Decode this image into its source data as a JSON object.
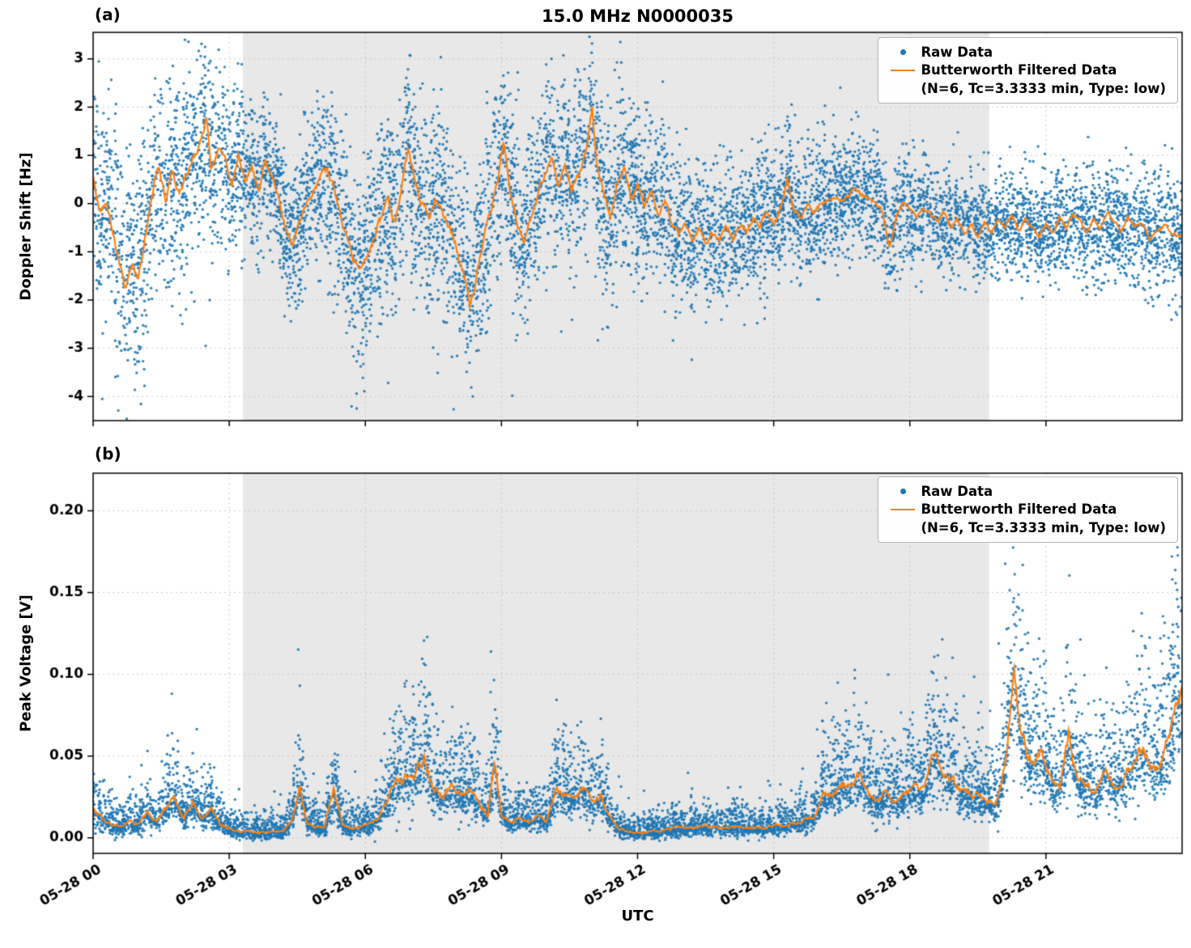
{
  "figure": {
    "title": "15.0 MHz N0000035",
    "xlabel": "UTC",
    "panels": [
      {
        "label": "(a)"
      },
      {
        "label": "(b)"
      }
    ],
    "legend": {
      "raw_label": "Raw Data",
      "filtered_label": "Butterworth Filtered Data",
      "filtered_sublabel": "(N=6, Tc=3.3333 min, Type: low)"
    },
    "colors": {
      "raw": "#1f77b4",
      "filtered": "#ff7f0e",
      "shade": "#e8e8e8",
      "grid": "#bfbfbf"
    }
  },
  "chart_data": [
    {
      "type": "scatter",
      "panel": "(a)",
      "title": "15.0 MHz N0000035",
      "ylabel": "Doppler Shift [Hz]",
      "xlabel": "UTC",
      "xlim_hours": [
        0,
        24
      ],
      "ylim": [
        -4.5,
        3.55
      ],
      "yticks": [
        -4,
        -3,
        -2,
        -1,
        0,
        1,
        2,
        3
      ],
      "xticks": [
        {
          "hour": 0,
          "label": "05-28 00"
        },
        {
          "hour": 3,
          "label": "05-28 03"
        },
        {
          "hour": 6,
          "label": "05-28 06"
        },
        {
          "hour": 9,
          "label": "05-28 09"
        },
        {
          "hour": 12,
          "label": "05-28 12"
        },
        {
          "hour": 15,
          "label": "05-28 15"
        },
        {
          "hour": 18,
          "label": "05-28 18"
        },
        {
          "hour": 21,
          "label": "05-28 21"
        }
      ],
      "shaded_region_hours": [
        3.3,
        19.75
      ],
      "series": [
        {
          "name": "Raw Data",
          "style": "scatter",
          "color": "#1f77b4"
        },
        {
          "name": "Butterworth Filtered Data (N=6, Tc=3.3333 min, Type: low)",
          "style": "line",
          "color": "#ff7f0e"
        }
      ],
      "filtered_line_hour_value": [
        [
          0,
          0.5
        ],
        [
          0.15,
          -0.2
        ],
        [
          0.3,
          0.1
        ],
        [
          0.5,
          -0.9
        ],
        [
          0.7,
          -1.8
        ],
        [
          0.85,
          -1.3
        ],
        [
          1.0,
          -1.6
        ],
        [
          1.15,
          -0.6
        ],
        [
          1.3,
          0.2
        ],
        [
          1.45,
          0.8
        ],
        [
          1.6,
          0.1
        ],
        [
          1.75,
          0.7
        ],
        [
          1.9,
          0.3
        ],
        [
          2.05,
          0.6
        ],
        [
          2.2,
          0.9
        ],
        [
          2.35,
          1.2
        ],
        [
          2.5,
          1.8
        ],
        [
          2.6,
          0.8
        ],
        [
          2.75,
          1.1
        ],
        [
          2.9,
          0.9
        ],
        [
          3.05,
          0.3
        ],
        [
          3.2,
          1.0
        ],
        [
          3.35,
          0.5
        ],
        [
          3.5,
          0.8
        ],
        [
          3.65,
          0.3
        ],
        [
          3.8,
          0.9
        ],
        [
          3.95,
          0.5
        ],
        [
          4.1,
          0.1
        ],
        [
          4.25,
          -0.5
        ],
        [
          4.4,
          -0.9
        ],
        [
          4.55,
          -0.4
        ],
        [
          4.7,
          0.0
        ],
        [
          4.85,
          0.2
        ],
        [
          5.0,
          0.5
        ],
        [
          5.15,
          0.7
        ],
        [
          5.3,
          0.3
        ],
        [
          5.45,
          -0.2
        ],
        [
          5.6,
          -0.8
        ],
        [
          5.75,
          -1.2
        ],
        [
          5.9,
          -1.4
        ],
        [
          6.05,
          -1.1
        ],
        [
          6.2,
          -0.7
        ],
        [
          6.35,
          -0.3
        ],
        [
          6.5,
          0.1
        ],
        [
          6.65,
          -0.4
        ],
        [
          6.8,
          0.3
        ],
        [
          6.95,
          1.1
        ],
        [
          7.1,
          0.4
        ],
        [
          7.25,
          0.0
        ],
        [
          7.4,
          -0.3
        ],
        [
          7.55,
          0.2
        ],
        [
          7.7,
          -0.2
        ],
        [
          7.85,
          -0.5
        ],
        [
          8.0,
          -0.9
        ],
        [
          8.15,
          -1.4
        ],
        [
          8.3,
          -2.1
        ],
        [
          8.45,
          -1.5
        ],
        [
          8.6,
          -0.8
        ],
        [
          8.75,
          -0.2
        ],
        [
          8.9,
          0.4
        ],
        [
          9.05,
          1.3
        ],
        [
          9.2,
          0.3
        ],
        [
          9.35,
          -0.5
        ],
        [
          9.5,
          -0.8
        ],
        [
          9.65,
          -0.2
        ],
        [
          9.8,
          0.2
        ],
        [
          9.95,
          0.6
        ],
        [
          10.1,
          1.0
        ],
        [
          10.25,
          0.4
        ],
        [
          10.4,
          0.8
        ],
        [
          10.55,
          0.2
        ],
        [
          10.7,
          0.6
        ],
        [
          10.85,
          1.0
        ],
        [
          11.0,
          2.0
        ],
        [
          11.1,
          0.8
        ],
        [
          11.25,
          0.2
        ],
        [
          11.4,
          -0.3
        ],
        [
          11.55,
          0.4
        ],
        [
          11.7,
          0.7
        ],
        [
          11.85,
          0.1
        ],
        [
          12.0,
          0.4
        ],
        [
          12.15,
          0.0
        ],
        [
          12.3,
          0.3
        ],
        [
          12.45,
          -0.2
        ],
        [
          12.6,
          0.1
        ],
        [
          12.75,
          -0.4
        ],
        [
          12.9,
          -0.7
        ],
        [
          13.05,
          -0.4
        ],
        [
          13.2,
          -0.8
        ],
        [
          13.35,
          -0.5
        ],
        [
          13.5,
          -0.9
        ],
        [
          13.65,
          -0.6
        ],
        [
          13.8,
          -0.8
        ],
        [
          13.95,
          -0.5
        ],
        [
          14.1,
          -0.7
        ],
        [
          14.25,
          -0.4
        ],
        [
          14.4,
          -0.6
        ],
        [
          14.55,
          -0.3
        ],
        [
          14.7,
          -0.5
        ],
        [
          14.85,
          -0.2
        ],
        [
          15.0,
          -0.4
        ],
        [
          15.15,
          -0.1
        ],
        [
          15.3,
          0.5
        ],
        [
          15.45,
          -0.1
        ],
        [
          15.6,
          -0.3
        ],
        [
          15.75,
          -0.1
        ],
        [
          15.9,
          -0.2
        ],
        [
          16.05,
          0.0
        ],
        [
          16.2,
          0.1
        ],
        [
          16.35,
          0.2
        ],
        [
          16.5,
          0.1
        ],
        [
          16.65,
          0.2
        ],
        [
          16.8,
          0.3
        ],
        [
          16.95,
          0.2
        ],
        [
          17.1,
          0.1
        ],
        [
          17.25,
          0.0
        ],
        [
          17.4,
          -0.2
        ],
        [
          17.55,
          -0.9
        ],
        [
          17.7,
          -0.3
        ],
        [
          17.85,
          0.0
        ],
        [
          18.0,
          -0.1
        ],
        [
          18.15,
          -0.3
        ],
        [
          18.3,
          -0.1
        ],
        [
          18.45,
          -0.2
        ],
        [
          18.6,
          -0.4
        ],
        [
          18.75,
          -0.2
        ],
        [
          18.9,
          -0.5
        ],
        [
          19.05,
          -0.3
        ],
        [
          19.2,
          -0.6
        ],
        [
          19.35,
          -0.4
        ],
        [
          19.5,
          -0.7
        ],
        [
          19.65,
          -0.4
        ],
        [
          19.8,
          -0.6
        ],
        [
          19.95,
          -0.3
        ],
        [
          20.1,
          -0.5
        ],
        [
          20.25,
          -0.2
        ],
        [
          20.4,
          -0.6
        ],
        [
          20.55,
          -0.3
        ],
        [
          20.7,
          -0.5
        ],
        [
          20.85,
          -0.7
        ],
        [
          21.0,
          -0.4
        ],
        [
          21.15,
          -0.6
        ],
        [
          21.3,
          -0.3
        ],
        [
          21.45,
          -0.5
        ],
        [
          21.6,
          -0.2
        ],
        [
          21.75,
          -0.4
        ],
        [
          21.9,
          -0.6
        ],
        [
          22.05,
          -0.3
        ],
        [
          22.2,
          -0.5
        ],
        [
          22.35,
          -0.2
        ],
        [
          22.5,
          -0.4
        ],
        [
          22.65,
          -0.6
        ],
        [
          22.8,
          -0.3
        ],
        [
          22.95,
          -0.5
        ],
        [
          23.1,
          -0.4
        ],
        [
          23.3,
          -0.8
        ],
        [
          23.6,
          -0.5
        ],
        [
          23.9,
          -0.7
        ]
      ],
      "raw_noise_envelope_hour_sigma": [
        [
          0,
          1.0
        ],
        [
          1,
          1.15
        ],
        [
          2,
          1.05
        ],
        [
          2.6,
          1.0
        ],
        [
          3,
          0.85
        ],
        [
          4,
          0.7
        ],
        [
          5,
          0.85
        ],
        [
          6,
          1.0
        ],
        [
          7,
          1.05
        ],
        [
          8,
          1.05
        ],
        [
          9,
          1.05
        ],
        [
          10,
          0.95
        ],
        [
          11,
          1.0
        ],
        [
          12,
          0.9
        ],
        [
          13,
          0.8
        ],
        [
          14,
          0.75
        ],
        [
          15,
          0.7
        ],
        [
          16,
          0.65
        ],
        [
          17,
          0.6
        ],
        [
          18,
          0.58
        ],
        [
          19,
          0.55
        ],
        [
          20,
          0.5
        ],
        [
          21,
          0.5
        ],
        [
          22,
          0.55
        ],
        [
          23,
          0.6
        ],
        [
          24,
          0.65
        ]
      ],
      "noise_model": {
        "type": "symmetric-gaussian"
      }
    },
    {
      "type": "scatter",
      "panel": "(b)",
      "ylabel": "Peak Voltage [V]",
      "xlabel": "UTC",
      "xlim_hours": [
        0,
        24
      ],
      "ylim": [
        -0.0095,
        0.223
      ],
      "yticks": [
        0.0,
        0.05,
        0.1,
        0.15,
        0.2
      ],
      "xticks": [
        {
          "hour": 0,
          "label": "05-28 00"
        },
        {
          "hour": 3,
          "label": "05-28 03"
        },
        {
          "hour": 6,
          "label": "05-28 06"
        },
        {
          "hour": 9,
          "label": "05-28 09"
        },
        {
          "hour": 12,
          "label": "05-28 12"
        },
        {
          "hour": 15,
          "label": "05-28 15"
        },
        {
          "hour": 18,
          "label": "05-28 18"
        },
        {
          "hour": 21,
          "label": "05-28 21"
        }
      ],
      "shaded_region_hours": [
        3.3,
        19.75
      ],
      "series": [
        {
          "name": "Raw Data",
          "style": "scatter",
          "color": "#1f77b4"
        },
        {
          "name": "Butterworth Filtered Data (N=6, Tc=3.3333 min, Type: low)",
          "style": "line",
          "color": "#ff7f0e"
        }
      ],
      "filtered_line_hour_value": [
        [
          0,
          0.018
        ],
        [
          0.2,
          0.012
        ],
        [
          0.4,
          0.008
        ],
        [
          0.6,
          0.007
        ],
        [
          0.8,
          0.01
        ],
        [
          1.0,
          0.008
        ],
        [
          1.2,
          0.015
        ],
        [
          1.4,
          0.01
        ],
        [
          1.6,
          0.018
        ],
        [
          1.8,
          0.025
        ],
        [
          2.0,
          0.012
        ],
        [
          2.2,
          0.022
        ],
        [
          2.4,
          0.012
        ],
        [
          2.6,
          0.018
        ],
        [
          2.8,
          0.008
        ],
        [
          3.0,
          0.006
        ],
        [
          3.3,
          0.004
        ],
        [
          3.6,
          0.003
        ],
        [
          3.9,
          0.003
        ],
        [
          4.2,
          0.004
        ],
        [
          4.4,
          0.012
        ],
        [
          4.55,
          0.032
        ],
        [
          4.7,
          0.01
        ],
        [
          4.9,
          0.007
        ],
        [
          5.1,
          0.006
        ],
        [
          5.3,
          0.028
        ],
        [
          5.5,
          0.008
        ],
        [
          5.7,
          0.006
        ],
        [
          5.9,
          0.007
        ],
        [
          6.1,
          0.008
        ],
        [
          6.3,
          0.012
        ],
        [
          6.5,
          0.025
        ],
        [
          6.7,
          0.035
        ],
        [
          6.9,
          0.038
        ],
        [
          7.1,
          0.042
        ],
        [
          7.3,
          0.05
        ],
        [
          7.5,
          0.03
        ],
        [
          7.7,
          0.026
        ],
        [
          7.9,
          0.03
        ],
        [
          8.1,
          0.026
        ],
        [
          8.3,
          0.028
        ],
        [
          8.5,
          0.02
        ],
        [
          8.7,
          0.015
        ],
        [
          8.85,
          0.048
        ],
        [
          9.0,
          0.015
        ],
        [
          9.2,
          0.01
        ],
        [
          9.4,
          0.012
        ],
        [
          9.6,
          0.01
        ],
        [
          9.8,
          0.013
        ],
        [
          10.0,
          0.01
        ],
        [
          10.2,
          0.03
        ],
        [
          10.4,
          0.026
        ],
        [
          10.6,
          0.022
        ],
        [
          10.8,
          0.03
        ],
        [
          11.0,
          0.02
        ],
        [
          11.2,
          0.026
        ],
        [
          11.4,
          0.012
        ],
        [
          11.6,
          0.005
        ],
        [
          11.8,
          0.004
        ],
        [
          12.0,
          0.003
        ],
        [
          12.3,
          0.004
        ],
        [
          12.6,
          0.005
        ],
        [
          12.9,
          0.006
        ],
        [
          13.2,
          0.006
        ],
        [
          13.5,
          0.007
        ],
        [
          13.8,
          0.006
        ],
        [
          14.1,
          0.007
        ],
        [
          14.4,
          0.006
        ],
        [
          14.7,
          0.006
        ],
        [
          15.0,
          0.007
        ],
        [
          15.3,
          0.008
        ],
        [
          15.6,
          0.01
        ],
        [
          15.9,
          0.013
        ],
        [
          16.1,
          0.028
        ],
        [
          16.3,
          0.026
        ],
        [
          16.5,
          0.034
        ],
        [
          16.7,
          0.03
        ],
        [
          16.9,
          0.038
        ],
        [
          17.1,
          0.026
        ],
        [
          17.3,
          0.022
        ],
        [
          17.5,
          0.028
        ],
        [
          17.7,
          0.023
        ],
        [
          17.9,
          0.026
        ],
        [
          18.1,
          0.03
        ],
        [
          18.3,
          0.028
        ],
        [
          18.55,
          0.052
        ],
        [
          18.7,
          0.042
        ],
        [
          18.9,
          0.036
        ],
        [
          19.1,
          0.03
        ],
        [
          19.3,
          0.028
        ],
        [
          19.5,
          0.025
        ],
        [
          19.7,
          0.022
        ],
        [
          19.9,
          0.02
        ],
        [
          20.1,
          0.045
        ],
        [
          20.3,
          0.1
        ],
        [
          20.45,
          0.065
        ],
        [
          20.6,
          0.05
        ],
        [
          20.75,
          0.045
        ],
        [
          20.9,
          0.05
        ],
        [
          21.1,
          0.036
        ],
        [
          21.3,
          0.03
        ],
        [
          21.5,
          0.062
        ],
        [
          21.7,
          0.036
        ],
        [
          21.9,
          0.03
        ],
        [
          22.1,
          0.028
        ],
        [
          22.3,
          0.045
        ],
        [
          22.5,
          0.03
        ],
        [
          22.7,
          0.035
        ],
        [
          22.9,
          0.044
        ],
        [
          23.1,
          0.055
        ],
        [
          23.4,
          0.04
        ],
        [
          23.7,
          0.06
        ],
        [
          23.95,
          0.085
        ]
      ],
      "noise_model": {
        "type": "positive-skewed",
        "sigma_slope": 0.45,
        "sigma_base": 0.003
      }
    }
  ]
}
